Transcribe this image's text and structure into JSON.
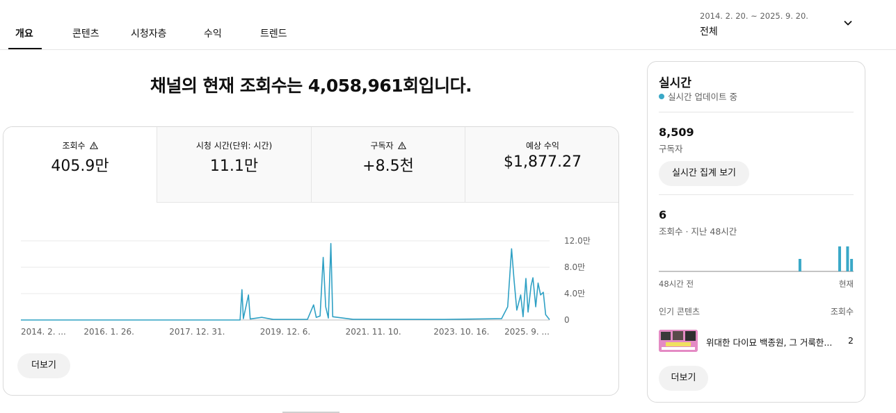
{
  "tabs": [
    {
      "label": "개요",
      "active": true
    },
    {
      "label": "콘텐츠"
    },
    {
      "label": "시청자층"
    },
    {
      "label": "수익"
    },
    {
      "label": "트렌드"
    }
  ],
  "date_range": {
    "range": "2014. 2. 20. ~ 2025. 9. 20.",
    "label": "전체",
    "icon": "chevron-down-icon"
  },
  "headline": "채널의 현재 조회수는 4,058,961회입니다.",
  "metrics": [
    {
      "label": "조회수",
      "value": "405.9만",
      "warning": true,
      "active": true
    },
    {
      "label": "시청 시간(단위: 시간)",
      "value": "11.1만"
    },
    {
      "label": "구독자",
      "value": "+8.5천",
      "warning": true
    },
    {
      "label": "예상 수익",
      "value": "$1,877.27"
    }
  ],
  "more_button": "더보기",
  "chart_data": {
    "type": "line",
    "title": "",
    "xlabel": "",
    "ylabel": "",
    "ylim": [
      0,
      120000
    ],
    "y_ticks": [
      "12.0만",
      "8.0만",
      "4.0만",
      "0"
    ],
    "x_ticks": [
      "2014. 2. ...",
      "2016. 1. 26.",
      "2017. 12. 31.",
      "2019. 12. 6.",
      "2021. 11. 10.",
      "2023. 10. 16.",
      "2025. 9. ..."
    ],
    "x_range": [
      "2014-02-20",
      "2025-09-20"
    ],
    "grid": true,
    "color": "#2ea0c4",
    "points": [
      {
        "x": "2014-02-20",
        "y": 0
      },
      {
        "x": "2018-12-10",
        "y": 0
      },
      {
        "x": "2018-12-25",
        "y": 46000
      },
      {
        "x": "2019-01-05",
        "y": 2000
      },
      {
        "x": "2019-02-15",
        "y": 38000
      },
      {
        "x": "2019-03-01",
        "y": 1500
      },
      {
        "x": "2019-06-01",
        "y": 4000
      },
      {
        "x": "2019-09-01",
        "y": 800
      },
      {
        "x": "2020-06-01",
        "y": 1000
      },
      {
        "x": "2020-07-20",
        "y": 23000
      },
      {
        "x": "2020-08-10",
        "y": 4000
      },
      {
        "x": "2020-09-10",
        "y": 6000
      },
      {
        "x": "2020-10-05",
        "y": 95000
      },
      {
        "x": "2020-10-25",
        "y": 20000
      },
      {
        "x": "2020-11-15",
        "y": 3000
      },
      {
        "x": "2020-12-05",
        "y": 116000
      },
      {
        "x": "2020-12-20",
        "y": 5000
      },
      {
        "x": "2021-06-01",
        "y": 1000
      },
      {
        "x": "2023-06-01",
        "y": 800
      },
      {
        "x": "2024-09-01",
        "y": 2000
      },
      {
        "x": "2024-10-20",
        "y": 20000
      },
      {
        "x": "2024-11-20",
        "y": 108000
      },
      {
        "x": "2024-12-10",
        "y": 60000
      },
      {
        "x": "2025-01-01",
        "y": 15000
      },
      {
        "x": "2025-02-01",
        "y": 38000
      },
      {
        "x": "2025-02-20",
        "y": 5000
      },
      {
        "x": "2025-03-15",
        "y": 63000
      },
      {
        "x": "2025-04-01",
        "y": 12000
      },
      {
        "x": "2025-04-25",
        "y": 52000
      },
      {
        "x": "2025-05-10",
        "y": 64000
      },
      {
        "x": "2025-06-01",
        "y": 20000
      },
      {
        "x": "2025-06-20",
        "y": 56000
      },
      {
        "x": "2025-07-10",
        "y": 38000
      },
      {
        "x": "2025-08-01",
        "y": 42000
      },
      {
        "x": "2025-08-20",
        "y": 8000
      },
      {
        "x": "2025-09-20",
        "y": 500
      }
    ]
  },
  "realtime": {
    "title": "실시간",
    "status": "실시간 업데이트 중",
    "subscribers_value": "8,509",
    "subscribers_label": "구독자",
    "report_button": "실시간 집계 보기",
    "views_value": "6",
    "views_label": "조회수 · 지난 48시간",
    "hourly_views": [
      0,
      0,
      0,
      0,
      0,
      0,
      0,
      0,
      0,
      0,
      0,
      0,
      0,
      0,
      0,
      0,
      0,
      0,
      0,
      0,
      0,
      0,
      0,
      0,
      0,
      0,
      0,
      0,
      0,
      0,
      0,
      0,
      0,
      0,
      0,
      1,
      0,
      0,
      0,
      0,
      0,
      0,
      0,
      0,
      0,
      2,
      0,
      2,
      1
    ],
    "axis_start": "48시간 전",
    "axis_end": "현재",
    "top_content_header": "인기 콘텐츠",
    "views_header": "조회수",
    "top_video": {
      "title": "위대한 다이묘 백종원, 그 거룩한...",
      "views": "2"
    },
    "more_button": "더보기",
    "accent": "#3aa8c7"
  }
}
